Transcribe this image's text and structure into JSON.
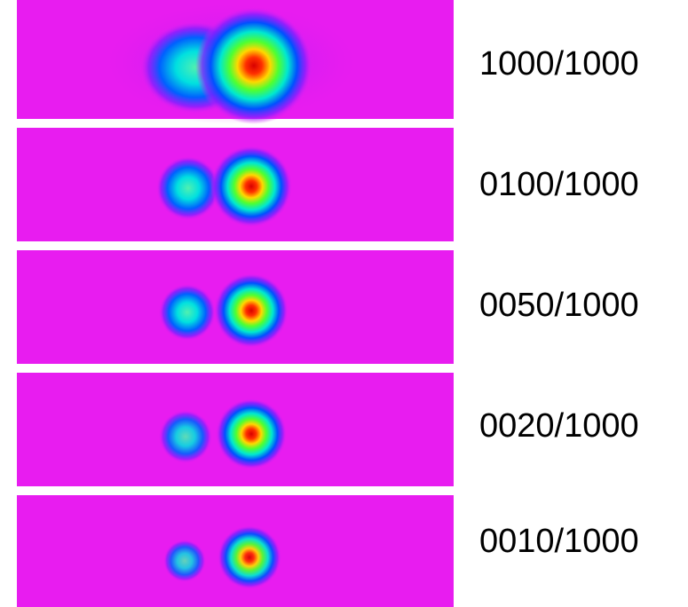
{
  "panels": [
    {
      "label": "1000/1000"
    },
    {
      "label": "0100/1000"
    },
    {
      "label": "0050/1000"
    },
    {
      "label": "0020/1000"
    },
    {
      "label": "0010/1000"
    }
  ]
}
